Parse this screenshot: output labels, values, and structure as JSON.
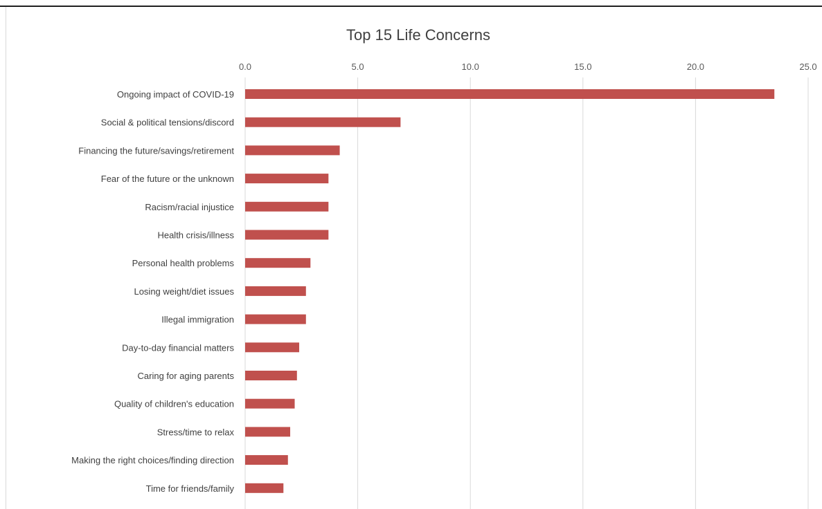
{
  "chart_data": {
    "type": "bar",
    "orientation": "horizontal",
    "title": "Top 15 Life Concerns",
    "xlabel": "",
    "ylabel": "",
    "xlim": [
      0,
      25
    ],
    "x_ticks": [
      "0.0",
      "5.0",
      "10.0",
      "15.0",
      "20.0",
      "25.0"
    ],
    "x_axis_position": "top",
    "grid": true,
    "legend": "none",
    "bar_color": "#c0504d",
    "categories": [
      "Ongoing impact of COVID-19",
      "Social & political tensions/discord",
      "Financing the future/savings/retirement",
      "Fear of the future or the unknown",
      "Racism/racial injustice",
      "Health crisis/illness",
      "Personal health problems",
      "Losing weight/diet issues",
      "Illegal immigration",
      "Day-to-day financial matters",
      "Caring for aging parents",
      "Quality of children's education",
      "Stress/time to relax",
      "Making the right choices/finding direction",
      "Time for friends/family"
    ],
    "values": [
      23.5,
      6.9,
      4.2,
      3.7,
      3.7,
      3.7,
      2.9,
      2.7,
      2.7,
      2.4,
      2.3,
      2.2,
      2.0,
      1.9,
      1.7
    ]
  }
}
